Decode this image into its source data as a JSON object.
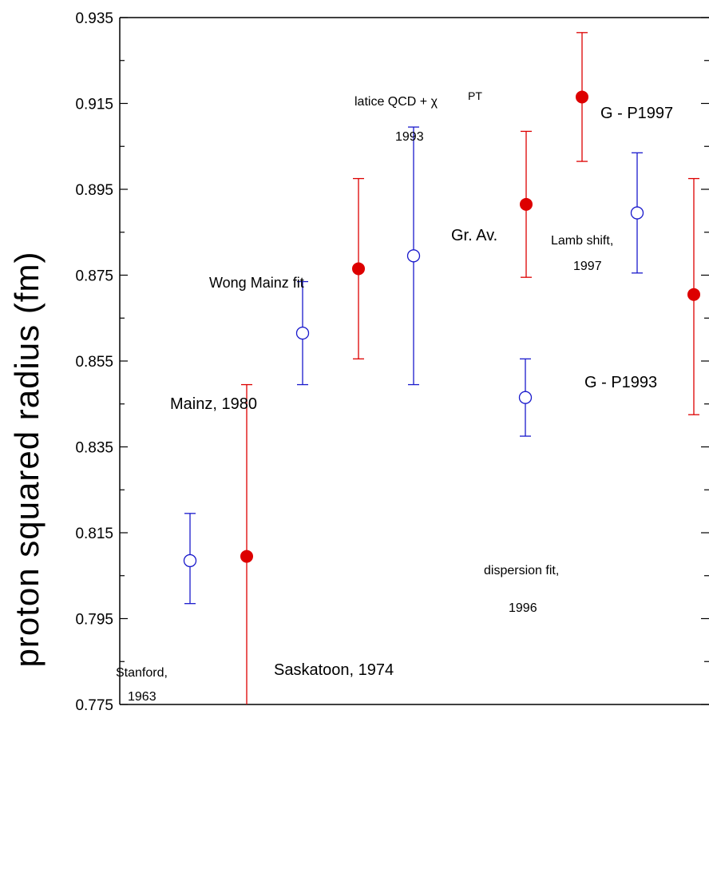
{
  "chart_data": {
    "type": "scatter",
    "title": "",
    "xlabel": "",
    "ylabel": "proton squared radius (fm)",
    "ylim": [
      0.775,
      0.935
    ],
    "yticks": [
      "0.775",
      "0.795",
      "0.815",
      "0.835",
      "0.855",
      "0.875",
      "0.895",
      "0.915",
      "0.935"
    ],
    "grid": false,
    "colors": {
      "red": "#dd0000",
      "blue": "#1a1acc"
    },
    "points": [
      {
        "x": 1,
        "y": 0.8085,
        "err_low": 0.7985,
        "err_high": 0.8195,
        "style": "open-blue"
      },
      {
        "x": 2,
        "y": 0.8095,
        "err_low": 0.775,
        "err_high": 0.8495,
        "style": "filled-red"
      },
      {
        "x": 3,
        "y": 0.8615,
        "err_low": 0.8495,
        "err_high": 0.8735,
        "style": "open-blue"
      },
      {
        "x": 4,
        "y": 0.8765,
        "err_low": 0.8555,
        "err_high": 0.8975,
        "style": "filled-red"
      },
      {
        "x": 5,
        "y": 0.8795,
        "err_low": 0.8495,
        "err_high": 0.9095,
        "style": "open-blue"
      },
      {
        "x": 6,
        "y": 0.8465,
        "err_low": 0.8375,
        "err_high": 0.8555,
        "style": "open-blue"
      },
      {
        "x": 7,
        "y": 0.8915,
        "err_low": 0.8745,
        "err_high": 0.9085,
        "style": "filled-red"
      },
      {
        "x": 8,
        "y": 0.9165,
        "err_low": 0.9015,
        "err_high": 0.9315,
        "style": "filled-red"
      },
      {
        "x": 9,
        "y": 0.8895,
        "err_low": 0.8755,
        "err_high": 0.9035,
        "style": "open-blue"
      },
      {
        "x": 10,
        "y": 0.8705,
        "err_low": 0.8425,
        "err_high": 0.8975,
        "style": "filled-red"
      }
    ],
    "annotations": [
      {
        "name": "stanford-label",
        "lines": [
          "Stanford,",
          "1963"
        ]
      },
      {
        "name": "saskatoon-label",
        "lines": [
          "Saskatoon, 1974"
        ]
      },
      {
        "name": "mainz-label",
        "lines": [
          "Mainz, 1980"
        ]
      },
      {
        "name": "wong-mainz-label",
        "lines": [
          "Wong Mainz fit"
        ]
      },
      {
        "name": "lattice-qcd-label",
        "lines": [
          "latice QCD + χ",
          "PT",
          "1993"
        ]
      },
      {
        "name": "dispersion-label",
        "lines": [
          "dispersion fit,",
          "1996"
        ]
      },
      {
        "name": "grav-label",
        "lines": [
          "Gr. Av."
        ]
      },
      {
        "name": "gp1997-label",
        "lines": [
          "G - P1997"
        ]
      },
      {
        "name": "lamb-label",
        "lines": [
          "Lamb shift,",
          "1997"
        ]
      },
      {
        "name": "gp1993-label",
        "lines": [
          "G - P1993"
        ]
      }
    ]
  }
}
